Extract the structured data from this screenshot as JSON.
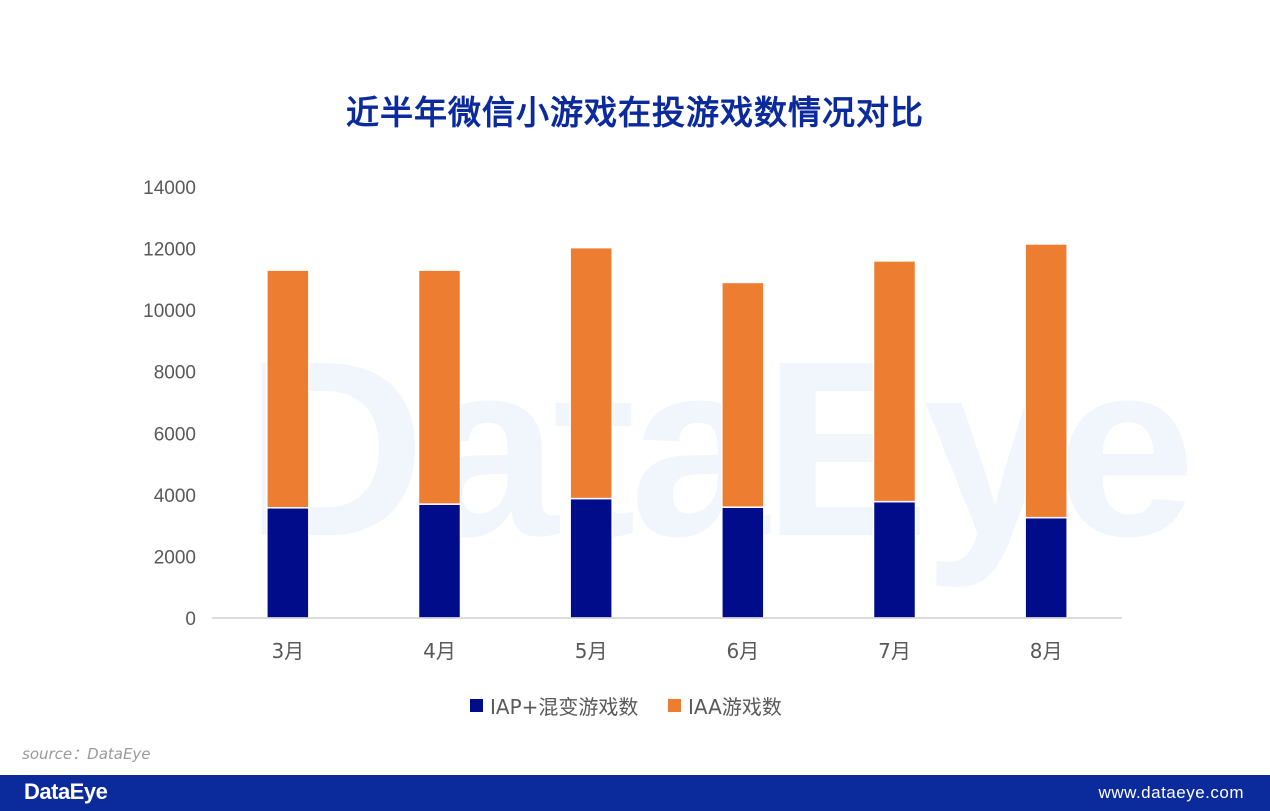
{
  "title": "近半年微信小游戏在投游戏数情况对比",
  "watermark": "DataEye",
  "source": "source：DataEye",
  "footer": {
    "logo": "DataEye",
    "url": "www.dataeye.com"
  },
  "colors": {
    "iap": "#000c8a",
    "iaa": "#ed7d31",
    "title": "#0b2a9c",
    "footer": "#0b2a9c"
  },
  "chart_data": {
    "type": "bar",
    "stacked": true,
    "categories": [
      "3月",
      "4月",
      "5月",
      "6月",
      "7月",
      "8月"
    ],
    "series": [
      {
        "name": "IAP+混变游戏数",
        "color": "#000c8a",
        "values": [
          3580,
          3700,
          3880,
          3600,
          3780,
          3260
        ]
      },
      {
        "name": "IAA游戏数",
        "color": "#ed7d31",
        "values": [
          7720,
          7600,
          8150,
          7300,
          7820,
          8890
        ]
      }
    ],
    "ylim": [
      0,
      14000
    ],
    "yticks": [
      0,
      2000,
      4000,
      6000,
      8000,
      10000,
      12000,
      14000
    ],
    "grid": false,
    "legend_position": "bottom"
  }
}
